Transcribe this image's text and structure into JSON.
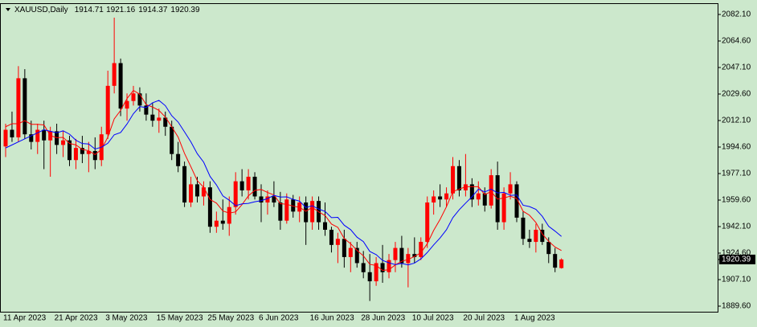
{
  "chart_data": {
    "type": "candlestick",
    "title": "XAUUSD,Daily",
    "categories": [
      "11 Apr 2023",
      null,
      null,
      null,
      null,
      null,
      null,
      null,
      "21 Apr 2023",
      null,
      null,
      null,
      null,
      null,
      null,
      null,
      "3 May 2023",
      null,
      null,
      null,
      null,
      null,
      null,
      null,
      "15 May 2023",
      null,
      null,
      null,
      null,
      null,
      null,
      null,
      "25 May 2023",
      null,
      null,
      null,
      null,
      null,
      null,
      null,
      "6 Jun 2023",
      null,
      null,
      null,
      null,
      null,
      null,
      null,
      "16 Jun 2023",
      null,
      null,
      null,
      null,
      null,
      null,
      null,
      "28 Jun 2023",
      null,
      null,
      null,
      null,
      null,
      null,
      null,
      "10 Jul 2023",
      null,
      null,
      null,
      null,
      null,
      null,
      null,
      "20 Jul 2023",
      null,
      null,
      null,
      null,
      null,
      null,
      null,
      "1 Aug 2023",
      null,
      null,
      null,
      null,
      null,
      null,
      null
    ],
    "open": [
      1995,
      2006,
      2001,
      2040,
      2003,
      1998,
      2006,
      1999,
      2005,
      1996,
      1999,
      1986,
      1994,
      1990,
      1992,
      1986,
      2003,
      2035,
      2050,
      2020,
      2025,
      2030,
      2022,
      2016,
      2012,
      2014,
      2008,
      1990,
      1982,
      1958,
      1970,
      1962,
      1968,
      1942,
      1946,
      1944,
      1955,
      1972,
      1966,
      1975,
      1962,
      1958,
      1962,
      1958,
      1946,
      1960,
      1952,
      1958,
      1945,
      1959,
      1945,
      1940,
      1930,
      1934,
      1922,
      1928,
      1918,
      1912,
      1906,
      1918,
      1912,
      1920,
      1928,
      1918,
      1924,
      1922,
      1932,
      1958,
      1962,
      1960,
      1964,
      1982,
      1966,
      1970,
      1960,
      1964,
      1956,
      1976,
      1945,
      1964,
      1970,
      1948,
      1934,
      1932,
      1940,
      1932,
      1924,
      1914.71
    ],
    "high": [
      2010,
      2018,
      2048,
      2046,
      2012,
      2010,
      2012,
      2008,
      2010,
      2005,
      2002,
      2000,
      2002,
      1998,
      2001,
      2008,
      2045,
      2080,
      2053,
      2030,
      2035,
      2034,
      2030,
      2024,
      2020,
      2018,
      2012,
      1998,
      1985,
      1975,
      1975,
      1972,
      1972,
      1952,
      1960,
      1962,
      1978,
      1980,
      1980,
      1978,
      1970,
      1966,
      1972,
      1965,
      1964,
      1963,
      1962,
      1962,
      1962,
      1962,
      1958,
      1942,
      1938,
      1940,
      1932,
      1932,
      1926,
      1924,
      1922,
      1930,
      1924,
      1932,
      1936,
      1928,
      1935,
      1935,
      1962,
      1966,
      1970,
      1968,
      1988,
      1986,
      1990,
      1974,
      1972,
      1968,
      1980,
      1985,
      1968,
      1978,
      1972,
      1952,
      1940,
      1944,
      1944,
      1935,
      1928,
      1921.16
    ],
    "low": [
      1988,
      1998,
      1998,
      2000,
      1993,
      1990,
      1980,
      1975,
      1990,
      1988,
      1982,
      1980,
      1984,
      1978,
      1980,
      1982,
      2000,
      2030,
      2015,
      2012,
      2022,
      2018,
      2012,
      2008,
      2004,
      2002,
      1986,
      1978,
      1955,
      1955,
      1958,
      1956,
      1938,
      1938,
      1940,
      1936,
      1950,
      1962,
      1960,
      1960,
      1945,
      1950,
      1955,
      1940,
      1944,
      1948,
      1945,
      1930,
      1940,
      1940,
      1936,
      1925,
      1918,
      1915,
      1912,
      1915,
      1908,
      1893,
      1903,
      1905,
      1908,
      1912,
      1915,
      1902,
      1918,
      1920,
      1928,
      1950,
      1955,
      1955,
      1960,
      1962,
      1962,
      1955,
      1956,
      1952,
      1954,
      1940,
      1940,
      1960,
      1945,
      1930,
      1928,
      1925,
      1930,
      1918,
      1912,
      1914.37
    ],
    "close": [
      2006,
      2001,
      2040,
      2003,
      1998,
      2006,
      1999,
      2005,
      1996,
      1999,
      1986,
      1994,
      1990,
      1992,
      1986,
      2003,
      2035,
      2050,
      2020,
      2025,
      2030,
      2022,
      2016,
      2012,
      2014,
      2008,
      1990,
      1982,
      1958,
      1970,
      1962,
      1968,
      1942,
      1946,
      1944,
      1955,
      1972,
      1966,
      1975,
      1962,
      1958,
      1962,
      1958,
      1946,
      1960,
      1952,
      1958,
      1945,
      1959,
      1945,
      1940,
      1930,
      1934,
      1922,
      1928,
      1918,
      1912,
      1906,
      1918,
      1912,
      1920,
      1928,
      1918,
      1924,
      1922,
      1932,
      1958,
      1962,
      1960,
      1964,
      1982,
      1966,
      1970,
      1960,
      1964,
      1956,
      1976,
      1945,
      1964,
      1970,
      1948,
      1934,
      1932,
      1940,
      1932,
      1924,
      1915,
      1920.39
    ],
    "up_color": "#ff0000",
    "down_color": "#000000",
    "series": [
      {
        "color": "#ff0000",
        "values": [
          2008,
          2010,
          2010,
          2012,
          2009.6,
          2009.6,
          2009.2,
          2002.2,
          2000.8,
          2001.0,
          1997.0,
          1996.0,
          1993.0,
          1992.2,
          1989.6,
          1993.0,
          2001.2,
          2013.2,
          2018.8,
          2026.6,
          2032.0,
          2029.4,
          2022.6,
          2021.0,
          2018.8,
          2014.4,
          2008.0,
          2001.2,
          1990.4,
          1981.6,
          1972.4,
          1968.0,
          1960.0,
          1957.6,
          1952.4,
          1951.0,
          1951.8,
          1956.6,
          1962.4,
          1966.0,
          1966.6,
          1964.6,
          1963.0,
          1957.2,
          1956.8,
          1955.6,
          1954.8,
          1952.2,
          1954.8,
          1951.8,
          1949.4,
          1943.8,
          1941.6,
          1934.2,
          1930.8,
          1926.4,
          1922.8,
          1917.2,
          1916.4,
          1913.2,
          1913.6,
          1916.8,
          1919.2,
          1920.4,
          1922.4,
          1924.8,
          1930.8,
          1939.6,
          1946.8,
          1955.2,
          1965.2,
          1966.8,
          1968.4,
          1968.4,
          1968.4,
          1963.2,
          1965.2,
          1960.2,
          1961.0,
          1962.2,
          1960.6,
          1952.2,
          1949.6,
          1944.8,
          1937.2,
          1932.4,
          1928.6,
          1926.3
        ]
      },
      {
        "color": "#0000ff",
        "values": [
          1994,
          1996,
          1998,
          2000,
          2002,
          2004,
          2006,
          2005,
          2004,
          2005.3,
          2003.1,
          1999.1,
          1996.9,
          1996.6,
          1993.3,
          1994.5,
          1997.1,
          2002.7,
          2004.2,
          2009.8,
          2016.6,
          2021.3,
          2020.7,
          2023.8,
          2025.4,
          2021.9,
          2015.3,
          2011.1,
          2004.6,
          1998.0,
          1990.2,
          1984.6,
          1975.2,
          1969.6,
          1962.4,
          1959.5,
          1955.9,
          1957.1,
          1957.4,
          1958.5,
          1959.2,
          1960.6,
          1962.7,
          1961.6,
          1961.7,
          1960.1,
          1958.9,
          1954.7,
          1955.8,
          1953.7,
          1952.1,
          1948.0,
          1948.2,
          1943.0,
          1940.1,
          1935.1,
          1932.2,
          1925.7,
          1923.6,
          1919.8,
          1918.2,
          1917.0,
          1917.8,
          1916.8,
          1918.0,
          1920.8,
          1925.0,
          1930.0,
          1934.6,
          1940.0,
          1948.0,
          1953.2,
          1957.6,
          1961.8,
          1966.8,
          1965.0,
          1966.8,
          1964.3,
          1964.7,
          1962.7,
          1962.9,
          1956.2,
          1955.3,
          1953.5,
          1948.9,
          1942.3,
          1939.1,
          1935.6
        ]
      }
    ],
    "ylim": [
      1885.9,
      2089.0
    ],
    "yticks": [
      {
        "value": 2082.1,
        "label": "2082.10"
      },
      {
        "value": 2064.6,
        "label": "2064.60"
      },
      {
        "value": 2047.1,
        "label": "2047.10"
      },
      {
        "value": 2029.6,
        "label": "2029.60"
      },
      {
        "value": 2012.1,
        "label": "2012.10"
      },
      {
        "value": 1994.6,
        "label": "1994.60"
      },
      {
        "value": 1977.1,
        "label": "1977.10"
      },
      {
        "value": 1959.6,
        "label": "1959.60"
      },
      {
        "value": 1942.1,
        "label": "1942.10"
      },
      {
        "value": 1924.6,
        "label": "1924.60"
      },
      {
        "value": 1907.1,
        "label": "1907.10"
      },
      {
        "value": 1889.6,
        "label": "1889.60"
      }
    ],
    "background": "#cce8cc"
  }
}
